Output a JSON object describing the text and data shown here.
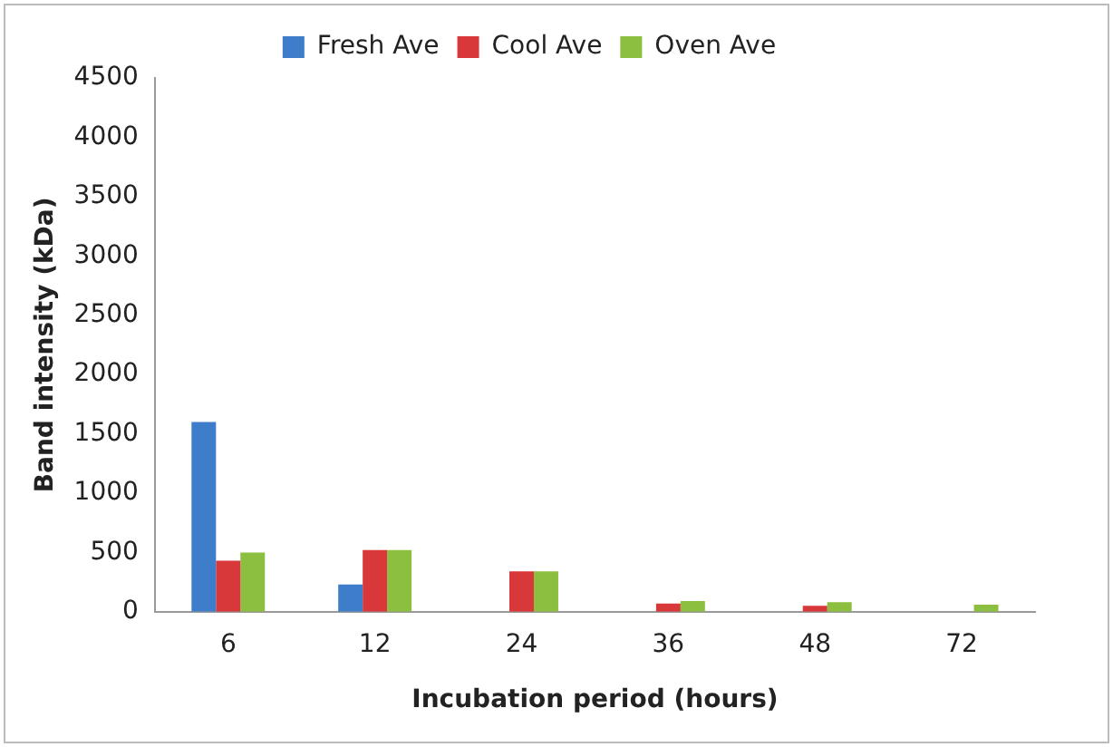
{
  "chart_data": {
    "type": "bar",
    "xlabel": "Incubation period (hours)",
    "ylabel": "Band intensity (kDa)",
    "categories": [
      "6",
      "12",
      "24",
      "36",
      "48",
      "72"
    ],
    "series": [
      {
        "name": "Fresh Ave",
        "color": "#3d7dca",
        "values": [
          1600,
          230,
          0,
          0,
          0,
          0
        ]
      },
      {
        "name": "Cool Ave",
        "color": "#d9383a",
        "values": [
          430,
          520,
          340,
          70,
          50,
          0
        ]
      },
      {
        "name": "Oven Ave",
        "color": "#8cbf3f",
        "values": [
          500,
          520,
          340,
          90,
          80,
          60
        ]
      }
    ],
    "ylim": [
      0,
      4500
    ],
    "yticks": [
      0,
      500,
      1000,
      1500,
      2000,
      2500,
      3000,
      3500,
      4000,
      4500
    ],
    "grid": false,
    "legend": "top"
  }
}
